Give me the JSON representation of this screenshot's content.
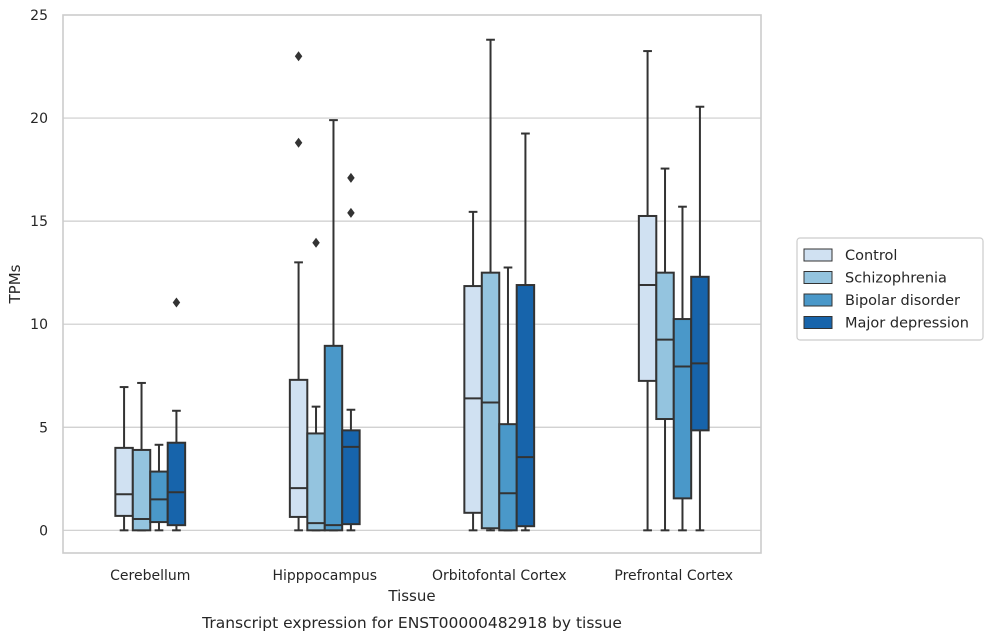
{
  "chart_data": {
    "type": "box",
    "caption": "Transcript expression for ENST00000482918 by tissue",
    "xlabel": "Tissue",
    "ylabel": "TPMs",
    "ylim": [
      -1.1,
      25
    ],
    "yticks": [
      0,
      5,
      10,
      15,
      20,
      25
    ],
    "grid": "horizontal",
    "legend_position": "right",
    "categories": [
      "Cerebellum",
      "Hipppocampus",
      "Orbitofontal Cortex",
      "Prefrontal Cortex"
    ],
    "series": [
      {
        "name": "Control",
        "color": "#d0e1f2",
        "boxes": [
          {
            "whislo": 0,
            "q1": 0.7,
            "med": 1.75,
            "q3": 4.0,
            "whishi": 6.95,
            "fliers": []
          },
          {
            "whislo": 0,
            "q1": 0.65,
            "med": 2.05,
            "q3": 7.3,
            "whishi": 13.0,
            "fliers": [
              18.8,
              23.0
            ]
          },
          {
            "whislo": 0,
            "q1": 0.85,
            "med": 6.4,
            "q3": 11.85,
            "whishi": 15.45,
            "fliers": []
          },
          {
            "whislo": 0,
            "q1": 7.25,
            "med": 11.9,
            "q3": 15.25,
            "whishi": 23.25,
            "fliers": []
          }
        ]
      },
      {
        "name": "Schizophrenia",
        "color": "#94c4df",
        "boxes": [
          {
            "whislo": 0,
            "q1": 0,
            "med": 0.55,
            "q3": 3.9,
            "whishi": 7.15,
            "fliers": []
          },
          {
            "whislo": 0,
            "q1": 0,
            "med": 0.35,
            "q3": 4.7,
            "whishi": 6.0,
            "fliers": [
              13.95
            ]
          },
          {
            "whislo": 0,
            "q1": 0.1,
            "med": 6.2,
            "q3": 12.5,
            "whishi": 23.8,
            "fliers": []
          },
          {
            "whislo": 0,
            "q1": 5.4,
            "med": 9.25,
            "q3": 12.5,
            "whishi": 17.55,
            "fliers": []
          }
        ]
      },
      {
        "name": "Bipolar disorder",
        "color": "#4a98c9",
        "boxes": [
          {
            "whislo": 0,
            "q1": 0.4,
            "med": 1.5,
            "q3": 2.85,
            "whishi": 4.15,
            "fliers": []
          },
          {
            "whislo": 0,
            "q1": 0,
            "med": 0.25,
            "q3": 8.95,
            "whishi": 19.9,
            "fliers": []
          },
          {
            "whislo": 0,
            "q1": 0,
            "med": 1.8,
            "q3": 5.15,
            "whishi": 12.75,
            "fliers": []
          },
          {
            "whislo": 0,
            "q1": 1.55,
            "med": 7.95,
            "q3": 10.25,
            "whishi": 15.7,
            "fliers": []
          }
        ]
      },
      {
        "name": "Major depression",
        "color": "#1764ab",
        "boxes": [
          {
            "whislo": 0,
            "q1": 0.25,
            "med": 1.85,
            "q3": 4.25,
            "whishi": 5.8,
            "fliers": [
              11.05
            ]
          },
          {
            "whislo": 0,
            "q1": 0.3,
            "med": 4.05,
            "q3": 4.85,
            "whishi": 5.85,
            "fliers": [
              15.4,
              17.1
            ]
          },
          {
            "whislo": 0,
            "q1": 0.2,
            "med": 3.55,
            "q3": 11.9,
            "whishi": 19.25,
            "fliers": []
          },
          {
            "whislo": 0,
            "q1": 4.85,
            "med": 8.1,
            "q3": 12.3,
            "whishi": 20.55,
            "fliers": []
          }
        ]
      }
    ]
  }
}
